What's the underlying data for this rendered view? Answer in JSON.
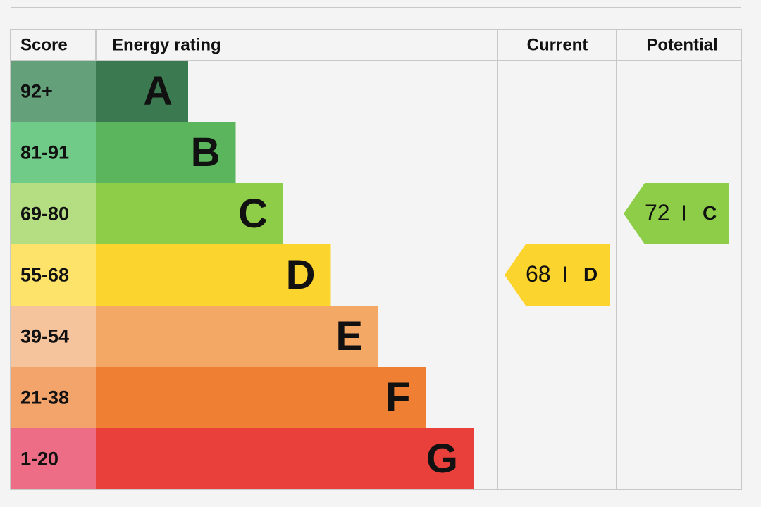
{
  "header": {
    "columns": [
      "Score",
      "Energy rating",
      "Current",
      "Potential"
    ]
  },
  "bands": [
    {
      "score": "92+",
      "letter": "A",
      "color": "#3b7a50",
      "score_color": "#64a07a"
    },
    {
      "score": "81-91",
      "letter": "B",
      "color": "#5bb55d",
      "score_color": "#6fcb87"
    },
    {
      "score": "69-80",
      "letter": "C",
      "color": "#8dcd47",
      "score_color": "#b5de82"
    },
    {
      "score": "55-68",
      "letter": "D",
      "color": "#fcd42e",
      "score_color": "#fde36a"
    },
    {
      "score": "39-54",
      "letter": "E",
      "color": "#f3a866",
      "score_color": "#f6c49c"
    },
    {
      "score": "21-38",
      "letter": "F",
      "color": "#ee7f33",
      "score_color": "#f2a46b"
    },
    {
      "score": "1-20",
      "letter": "G",
      "color": "#e9403c",
      "score_color": "#ec6d85"
    }
  ],
  "current": {
    "value": 68,
    "letter": "D"
  },
  "potential": {
    "value": 72,
    "letter": "C"
  }
}
